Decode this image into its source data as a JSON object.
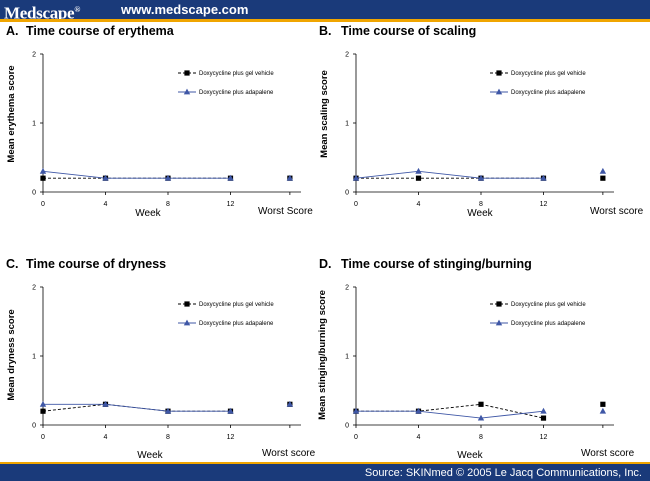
{
  "header": {
    "brand": "Medscape",
    "brand_mark": "®",
    "url": "www.medscape.com"
  },
  "footer": {
    "source": "Source: SKINmed © 2005 Le Jacq Communications, Inc."
  },
  "colors": {
    "header_bg": "#1a3a7a",
    "accent": "#f0a500",
    "series_vehicle": "#000000",
    "series_adapalene": "#3f57a6"
  },
  "chart_data": [
    {
      "panel": "A.",
      "title": "Time course of erythema",
      "type": "line",
      "ylabel": "Mean erythema score",
      "xlabel": "Week",
      "extra_label": "Worst Score",
      "x": [
        0,
        4,
        8,
        12
      ],
      "yticks": [
        "0",
        "1",
        "2"
      ],
      "ylim": [
        0,
        2
      ],
      "series": [
        {
          "name": "Doxycycline plus gel vehicle",
          "values": [
            0.2,
            0.2,
            0.2,
            0.2
          ],
          "worst": 0.2,
          "marker": "square",
          "style": "dashed"
        },
        {
          "name": "Doxycycline plus adapalene",
          "values": [
            0.3,
            0.2,
            0.2,
            0.2
          ],
          "worst": 0.2,
          "marker": "triangle",
          "style": "solid"
        }
      ]
    },
    {
      "panel": "B.",
      "title": "Time course of scaling",
      "type": "line",
      "ylabel": "Mean scaling score",
      "xlabel": "Week",
      "extra_label": "Worst score",
      "x": [
        0,
        4,
        8,
        12
      ],
      "yticks": [
        "0",
        "1",
        "2"
      ],
      "ylim": [
        0,
        2
      ],
      "series": [
        {
          "name": "Doxycycline plus gel vehicle",
          "values": [
            0.2,
            0.2,
            0.2,
            0.2
          ],
          "worst": 0.2,
          "marker": "square",
          "style": "dashed"
        },
        {
          "name": "Doxycycline plus adapalene",
          "values": [
            0.2,
            0.3,
            0.2,
            0.2
          ],
          "worst": 0.3,
          "marker": "triangle",
          "style": "solid"
        }
      ]
    },
    {
      "panel": "C.",
      "title": "Time course of dryness",
      "type": "line",
      "ylabel": "Mean dryness score",
      "xlabel": "Week",
      "extra_label": "Worst score",
      "x": [
        0,
        4,
        8,
        12
      ],
      "yticks": [
        "0",
        "1",
        "2"
      ],
      "ylim": [
        0,
        2
      ],
      "series": [
        {
          "name": "Doxycycline plus gel vehicle",
          "values": [
            0.2,
            0.3,
            0.2,
            0.2
          ],
          "worst": 0.3,
          "marker": "square",
          "style": "dashed"
        },
        {
          "name": "Doxycycline plus adapalene",
          "values": [
            0.3,
            0.3,
            0.2,
            0.2
          ],
          "worst": 0.3,
          "marker": "triangle",
          "style": "solid"
        }
      ]
    },
    {
      "panel": "D.",
      "title": "Time course of stinging/burning",
      "type": "line",
      "ylabel": "Mean stinging/burning score",
      "xlabel": "Week",
      "extra_label": "Worst score",
      "x": [
        0,
        4,
        8,
        12
      ],
      "yticks": [
        "0",
        "1",
        "2"
      ],
      "ylim": [
        0,
        2
      ],
      "series": [
        {
          "name": "Doxycycline plus gel vehicle",
          "values": [
            0.2,
            0.2,
            0.3,
            0.1
          ],
          "worst": 0.3,
          "marker": "square",
          "style": "dashed"
        },
        {
          "name": "Doxycycline plus adapalene",
          "values": [
            0.2,
            0.2,
            0.1,
            0.2
          ],
          "worst": 0.2,
          "marker": "triangle",
          "style": "solid"
        }
      ]
    }
  ]
}
